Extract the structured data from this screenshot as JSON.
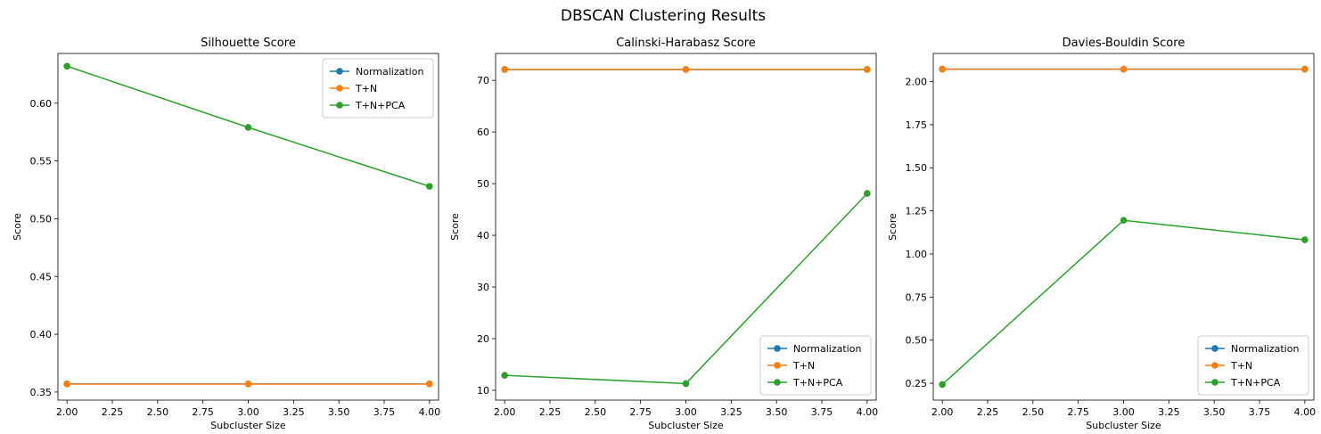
{
  "figure": {
    "title": "DBSCAN Clustering Results"
  },
  "colors": {
    "Normalization": "#1f77b4",
    "T+N": "#ff7f0e",
    "T+N+PCA": "#2ca02c"
  },
  "chart_data": [
    {
      "type": "line",
      "title": "Silhouette Score",
      "xlabel": "Subcluster Size",
      "ylabel": "Score",
      "x": [
        2.0,
        3.0,
        4.0
      ],
      "xlim": [
        1.95,
        4.05
      ],
      "ylim": [
        0.343,
        0.643
      ],
      "xticks": [
        "2.00",
        "2.25",
        "2.50",
        "2.75",
        "3.00",
        "3.25",
        "3.50",
        "3.75",
        "4.00"
      ],
      "yticks": [
        "0.35",
        "0.40",
        "0.45",
        "0.50",
        "0.55",
        "0.60"
      ],
      "legend": "upper right",
      "series": [
        {
          "name": "Normalization",
          "values": [
            0.357,
            0.357,
            0.357
          ]
        },
        {
          "name": "T+N",
          "values": [
            0.357,
            0.357,
            0.357
          ]
        },
        {
          "name": "T+N+PCA",
          "values": [
            0.632,
            0.579,
            0.528
          ]
        }
      ]
    },
    {
      "type": "line",
      "title": "Calinski-Harabasz Score",
      "xlabel": "Subcluster Size",
      "ylabel": "Score",
      "x": [
        2.0,
        3.0,
        4.0
      ],
      "xlim": [
        1.95,
        4.05
      ],
      "ylim": [
        8.1,
        75.2
      ],
      "xticks": [
        "2.00",
        "2.25",
        "2.50",
        "2.75",
        "3.00",
        "3.25",
        "3.50",
        "3.75",
        "4.00"
      ],
      "yticks": [
        "10",
        "20",
        "30",
        "40",
        "50",
        "60",
        "70"
      ],
      "legend": "lower right",
      "series": [
        {
          "name": "Normalization",
          "values": [
            72.1,
            72.1,
            72.1
          ]
        },
        {
          "name": "T+N",
          "values": [
            72.1,
            72.1,
            72.1
          ]
        },
        {
          "name": "T+N+PCA",
          "values": [
            12.9,
            11.3,
            48.1
          ]
        }
      ]
    },
    {
      "type": "line",
      "title": "Davies-Bouldin Score",
      "xlabel": "Subcluster Size",
      "ylabel": "Score",
      "x": [
        2.0,
        3.0,
        4.0
      ],
      "xlim": [
        1.95,
        4.05
      ],
      "ylim": [
        0.152,
        2.163
      ],
      "xticks": [
        "2.00",
        "2.25",
        "2.50",
        "2.75",
        "3.00",
        "3.25",
        "3.50",
        "3.75",
        "4.00"
      ],
      "yticks": [
        "0.25",
        "0.50",
        "0.75",
        "1.00",
        "1.25",
        "1.50",
        "1.75",
        "2.00"
      ],
      "legend": "lower right",
      "series": [
        {
          "name": "Normalization",
          "values": [
            2.072,
            2.072,
            2.072
          ]
        },
        {
          "name": "T+N",
          "values": [
            2.072,
            2.072,
            2.072
          ]
        },
        {
          "name": "T+N+PCA",
          "values": [
            0.243,
            1.195,
            1.082
          ]
        }
      ]
    }
  ]
}
